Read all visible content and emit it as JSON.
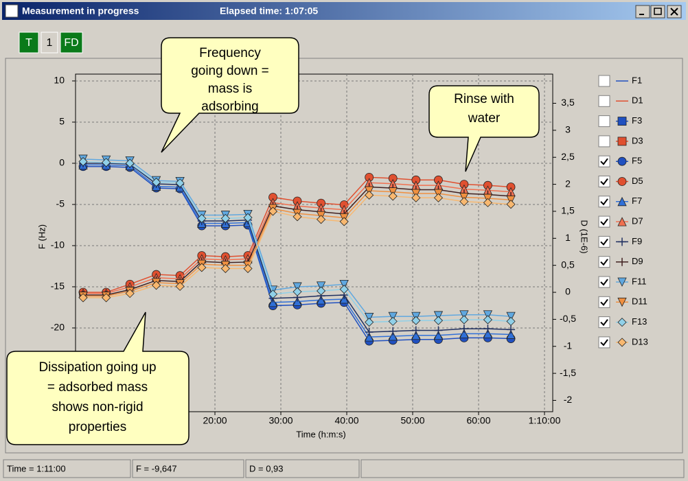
{
  "window": {
    "title": "Measurement in progress",
    "elapsed": "Elapsed time: 1:07:05"
  },
  "toolbar": [
    "T",
    "1",
    "FD"
  ],
  "status": [
    "Time = 1:11:00",
    "F = -9,647",
    "D = 0,93"
  ],
  "watermark": "1",
  "callouts": [
    {
      "lines": [
        "Frequency",
        "going down =",
        "mass is",
        "adsorbing"
      ]
    },
    {
      "lines": [
        "Rinse with",
        "water"
      ]
    },
    {
      "lines": [
        "Dissipation going up",
        "= adsorbed mass",
        "shows non-rigid",
        "properties"
      ]
    }
  ],
  "chart_data": {
    "type": "line",
    "xlabel": "Time (h:m:s)",
    "ylabel": "F (Hz)",
    "y2label": "D (1E-6)",
    "grid": true,
    "xlim": [
      -1.15,
      71.25
    ],
    "xticks": [
      {
        "value": 20,
        "label": "20:00"
      },
      {
        "value": 30,
        "label": "30:00"
      },
      {
        "value": 40,
        "label": "40:00"
      },
      {
        "value": 50,
        "label": "50:00"
      },
      {
        "value": 60,
        "label": "60:00"
      },
      {
        "value": 70,
        "label": "1:10:00"
      }
    ],
    "ylim": [
      -30.17,
      10.83
    ],
    "yticks": [
      10,
      5,
      0,
      -5,
      -10,
      -15,
      -20
    ],
    "y2lim": [
      -2.21,
      4.04
    ],
    "y2ticks": [
      {
        "value": 3.5,
        "label": "3,5"
      },
      3,
      {
        "value": 2.5,
        "label": "2,5"
      },
      2,
      {
        "value": 1.5,
        "label": "1,5"
      },
      1,
      {
        "value": 0.5,
        "label": "0,5"
      },
      0,
      {
        "value": -0.5,
        "label": "-0,5"
      },
      -1,
      {
        "value": -1.5,
        "label": "-1,5"
      },
      -2
    ],
    "x": [
      0,
      3.5,
      7.1,
      11.1,
      14.7,
      18,
      21.6,
      25,
      28.8,
      32.5,
      36.1,
      39.6,
      43.4,
      47,
      50.5,
      53.9,
      57.8,
      61.4,
      64.9
    ],
    "series": [
      {
        "name": "F1",
        "checked": false,
        "marker": "none",
        "color": "#2050c0"
      },
      {
        "name": "D1",
        "checked": false,
        "marker": "none",
        "color": "#e05030",
        "axis": "y2"
      },
      {
        "name": "F3",
        "checked": false,
        "marker": "square",
        "color": "#2050c0"
      },
      {
        "name": "D3",
        "checked": false,
        "marker": "square",
        "color": "#e05030",
        "axis": "y2"
      },
      {
        "name": "F5",
        "checked": true,
        "marker": "circle",
        "color": "#2050c0",
        "values": [
          -0.4,
          -0.4,
          -0.5,
          -3,
          -3.1,
          -7.6,
          -7.6,
          -7.5,
          -17.3,
          -17.2,
          -17,
          -16.9,
          -21.6,
          -21.5,
          -21.4,
          -21.4,
          -21.2,
          -21.2,
          -21.3
        ]
      },
      {
        "name": "D5",
        "checked": true,
        "marker": "circle",
        "color": "#e05030",
        "axis": "y2",
        "values": [
          0,
          0,
          0.15,
          0.33,
          0.31,
          0.68,
          0.66,
          0.68,
          1.76,
          1.69,
          1.65,
          1.62,
          2.13,
          2.11,
          2.08,
          2.08,
          2,
          1.98,
          1.95
        ]
      },
      {
        "name": "F7",
        "checked": true,
        "marker": "triangle-up",
        "color": "#3070d8",
        "values": [
          -0.2,
          -0.2,
          -0.3,
          -2.8,
          -2.9,
          -7.3,
          -7.3,
          -7.2,
          -16.9,
          -16.8,
          -16.6,
          -16.5,
          -21.1,
          -21,
          -20.9,
          -20.9,
          -20.7,
          -20.7,
          -20.8
        ]
      },
      {
        "name": "D7",
        "checked": true,
        "marker": "triangle-up",
        "color": "#f07050",
        "axis": "y2",
        "values": [
          -0.02,
          -0.02,
          0.1,
          0.27,
          0.25,
          0.62,
          0.6,
          0.62,
          1.66,
          1.6,
          1.56,
          1.53,
          2.03,
          2.01,
          1.98,
          1.98,
          1.91,
          1.89,
          1.86
        ]
      },
      {
        "name": "F9",
        "checked": true,
        "marker": "plus",
        "color": "#203060",
        "values": [
          0,
          0,
          -0.1,
          -2.5,
          -2.6,
          -7,
          -7,
          -6.9,
          -16.4,
          -16.3,
          -16.1,
          -16,
          -20.5,
          -20.4,
          -20.3,
          -20.3,
          -20.1,
          -20.1,
          -20.2
        ]
      },
      {
        "name": "D9",
        "checked": true,
        "marker": "plus",
        "color": "#402020",
        "axis": "y2",
        "values": [
          -0.05,
          -0.05,
          0.05,
          0.22,
          0.2,
          0.57,
          0.55,
          0.56,
          1.6,
          1.53,
          1.49,
          1.45,
          1.95,
          1.93,
          1.9,
          1.9,
          1.83,
          1.81,
          1.78
        ]
      },
      {
        "name": "F11",
        "checked": true,
        "marker": "triangle-down",
        "color": "#60a8e0",
        "values": [
          0.5,
          0.4,
          0.3,
          -2.1,
          -2.2,
          -6.3,
          -6.3,
          -6.2,
          -15.4,
          -15,
          -14.9,
          -14.7,
          -18.7,
          -18.6,
          -18.6,
          -18.5,
          -18.4,
          -18.4,
          -18.6
        ]
      },
      {
        "name": "D11",
        "checked": true,
        "marker": "triangle-down",
        "color": "#f09040",
        "axis": "y2",
        "values": [
          -0.07,
          -0.07,
          0.02,
          0.18,
          0.16,
          0.52,
          0.5,
          0.5,
          1.55,
          1.46,
          1.42,
          1.38,
          1.88,
          1.86,
          1.83,
          1.83,
          1.76,
          1.74,
          1.71
        ]
      },
      {
        "name": "F13",
        "checked": true,
        "marker": "diamond",
        "color": "#90d0e8",
        "values": [
          0.2,
          0.1,
          0,
          -2.3,
          -2.4,
          -6.7,
          -6.7,
          -6.6,
          -15.9,
          -15.6,
          -15.5,
          -15.3,
          -19.3,
          -19.2,
          -19.1,
          -19.1,
          -19,
          -19,
          -19.2
        ]
      },
      {
        "name": "D13",
        "checked": true,
        "marker": "diamond",
        "color": "#f8b870",
        "axis": "y2",
        "values": [
          -0.1,
          -0.1,
          -0.02,
          0.13,
          0.11,
          0.46,
          0.44,
          0.44,
          1.5,
          1.4,
          1.35,
          1.31,
          1.8,
          1.78,
          1.75,
          1.75,
          1.68,
          1.66,
          1.63
        ]
      }
    ]
  }
}
